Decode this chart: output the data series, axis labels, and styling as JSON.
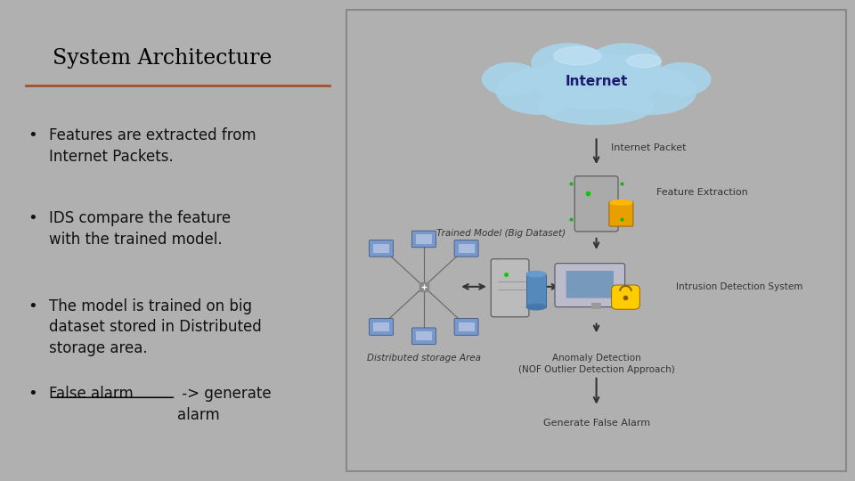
{
  "title": "System Architecture",
  "title_fontsize": 17,
  "title_color": "#000000",
  "divider_color": "#A0522D",
  "left_bg": "#E8E8E8",
  "right_bg": "#FFFFFF",
  "outer_bg": "#B0B0B0",
  "bullet_fontsize": 12,
  "bullet_color": "#111111",
  "label_fontsize": 8,
  "diagram_labels": {
    "internet": "Internet",
    "internet_packet": "Internet Packet",
    "feature_extraction": "Feature Extraction",
    "trained_model": "Trained Model (Big Dataset)",
    "ids": "Intrusion Detection System",
    "distributed": "Distributed storage Area",
    "anomaly": "Anomaly Detection\n(NOF Outlier Detection Approach)",
    "generate": "Generate False Alarm"
  },
  "cloud_color": "#A8D4EA",
  "cloud_color2": "#C5E5F5",
  "arrow_color": "#333333",
  "node_color": "#7799CC",
  "server_color": "#CCCCCC"
}
